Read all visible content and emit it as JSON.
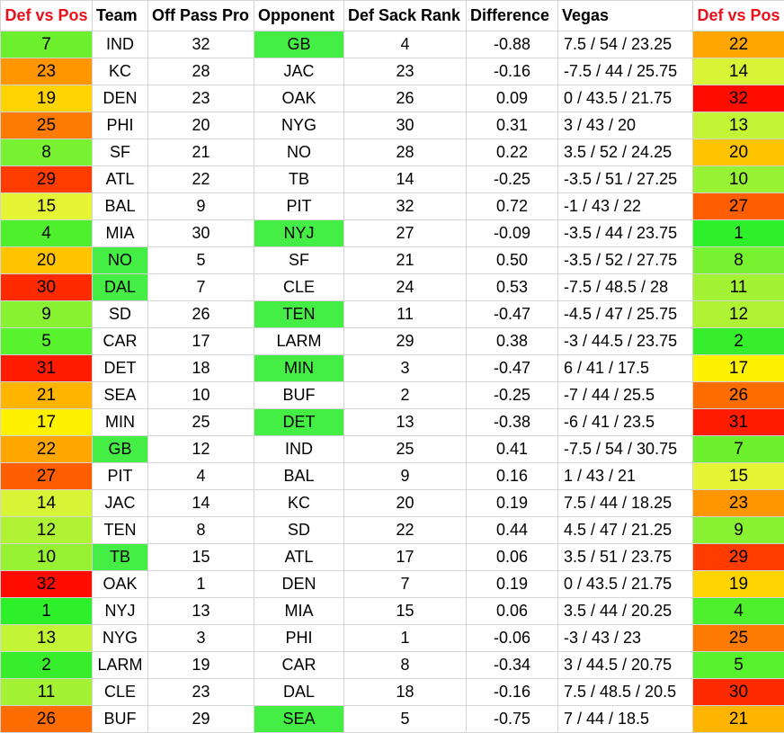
{
  "headers": [
    "Def vs Pos",
    "Team",
    "Off Pass Pro",
    "Opponent",
    "Def Sack Rank",
    "Difference",
    "Vegas",
    "Def vs Pos"
  ],
  "colors": {
    "header_red": "#e8121c",
    "highlight_green": "#44ee44",
    "scale": {
      "1": "#2ef02a",
      "2": "#36ee2c",
      "3": "#42f02c",
      "4": "#4ef02e",
      "5": "#58f22e",
      "6": "#64f230",
      "7": "#6cf02e",
      "8": "#78f230",
      "9": "#88f232",
      "10": "#98f234",
      "11": "#a4f234",
      "12": "#b0f234",
      "13": "#c4f436",
      "14": "#d8f436",
      "15": "#e6f436",
      "16": "#f0f434",
      "17": "#fff200",
      "18": "#ffe400",
      "19": "#ffd400",
      "20": "#ffc400",
      "21": "#ffb400",
      "22": "#ffa600",
      "23": "#ff9600",
      "24": "#ff8a00",
      "25": "#ff7a00",
      "26": "#ff6c00",
      "27": "#ff5e00",
      "28": "#ff5000",
      "29": "#ff3c00",
      "30": "#ff2a00",
      "31": "#ff1c00",
      "32": "#ff0c00"
    }
  },
  "rows": [
    {
      "def_vs_pos": "7",
      "team": "IND",
      "team_hl": false,
      "off_pass_pro": "32",
      "opponent": "GB",
      "opp_hl": true,
      "def_sack_rank": "4",
      "difference": "-0.88",
      "vegas": "7.5 / 54 / 23.25",
      "opp_def_vs_pos": "22"
    },
    {
      "def_vs_pos": "23",
      "team": "KC",
      "team_hl": false,
      "off_pass_pro": "28",
      "opponent": "JAC",
      "opp_hl": false,
      "def_sack_rank": "23",
      "difference": "-0.16",
      "vegas": "-7.5 / 44 / 25.75",
      "opp_def_vs_pos": "14"
    },
    {
      "def_vs_pos": "19",
      "team": "DEN",
      "team_hl": false,
      "off_pass_pro": "23",
      "opponent": "OAK",
      "opp_hl": false,
      "def_sack_rank": "26",
      "difference": "0.09",
      "vegas": "0 / 43.5 / 21.75",
      "opp_def_vs_pos": "32"
    },
    {
      "def_vs_pos": "25",
      "team": "PHI",
      "team_hl": false,
      "off_pass_pro": "20",
      "opponent": "NYG",
      "opp_hl": false,
      "def_sack_rank": "30",
      "difference": "0.31",
      "vegas": "3 / 43 / 20",
      "opp_def_vs_pos": "13"
    },
    {
      "def_vs_pos": "8",
      "team": "SF",
      "team_hl": false,
      "off_pass_pro": "21",
      "opponent": "NO",
      "opp_hl": false,
      "def_sack_rank": "28",
      "difference": "0.22",
      "vegas": "3.5 / 52 / 24.25",
      "opp_def_vs_pos": "20"
    },
    {
      "def_vs_pos": "29",
      "team": "ATL",
      "team_hl": false,
      "off_pass_pro": "22",
      "opponent": "TB",
      "opp_hl": false,
      "def_sack_rank": "14",
      "difference": "-0.25",
      "vegas": "-3.5 / 51 / 27.25",
      "opp_def_vs_pos": "10"
    },
    {
      "def_vs_pos": "15",
      "team": "BAL",
      "team_hl": false,
      "off_pass_pro": "9",
      "opponent": "PIT",
      "opp_hl": false,
      "def_sack_rank": "32",
      "difference": "0.72",
      "vegas": "-1 / 43 / 22",
      "opp_def_vs_pos": "27"
    },
    {
      "def_vs_pos": "4",
      "team": "MIA",
      "team_hl": false,
      "off_pass_pro": "30",
      "opponent": "NYJ",
      "opp_hl": true,
      "def_sack_rank": "27",
      "difference": "-0.09",
      "vegas": "-3.5 / 44 / 23.75",
      "opp_def_vs_pos": "1"
    },
    {
      "def_vs_pos": "20",
      "team": "NO",
      "team_hl": true,
      "off_pass_pro": "5",
      "opponent": "SF",
      "opp_hl": false,
      "def_sack_rank": "21",
      "difference": "0.50",
      "vegas": "-3.5 / 52 / 27.75",
      "opp_def_vs_pos": "8"
    },
    {
      "def_vs_pos": "30",
      "team": "DAL",
      "team_hl": true,
      "off_pass_pro": "7",
      "opponent": "CLE",
      "opp_hl": false,
      "def_sack_rank": "24",
      "difference": "0.53",
      "vegas": "-7.5 / 48.5 / 28",
      "opp_def_vs_pos": "11"
    },
    {
      "def_vs_pos": "9",
      "team": "SD",
      "team_hl": false,
      "off_pass_pro": "26",
      "opponent": "TEN",
      "opp_hl": true,
      "def_sack_rank": "11",
      "difference": "-0.47",
      "vegas": "-4.5 / 47 / 25.75",
      "opp_def_vs_pos": "12"
    },
    {
      "def_vs_pos": "5",
      "team": "CAR",
      "team_hl": false,
      "off_pass_pro": "17",
      "opponent": "LARM",
      "opp_hl": false,
      "def_sack_rank": "29",
      "difference": "0.38",
      "vegas": "-3 / 44.5 / 23.75",
      "opp_def_vs_pos": "2"
    },
    {
      "def_vs_pos": "31",
      "team": "DET",
      "team_hl": false,
      "off_pass_pro": "18",
      "opponent": "MIN",
      "opp_hl": true,
      "def_sack_rank": "3",
      "difference": "-0.47",
      "vegas": "6 / 41 / 17.5",
      "opp_def_vs_pos": "17"
    },
    {
      "def_vs_pos": "21",
      "team": "SEA",
      "team_hl": false,
      "off_pass_pro": "10",
      "opponent": "BUF",
      "opp_hl": false,
      "def_sack_rank": "2",
      "difference": "-0.25",
      "vegas": "-7 / 44 / 25.5",
      "opp_def_vs_pos": "26"
    },
    {
      "def_vs_pos": "17",
      "team": "MIN",
      "team_hl": false,
      "off_pass_pro": "25",
      "opponent": "DET",
      "opp_hl": true,
      "def_sack_rank": "13",
      "difference": "-0.38",
      "vegas": "-6 / 41 / 23.5",
      "opp_def_vs_pos": "31"
    },
    {
      "def_vs_pos": "22",
      "team": "GB",
      "team_hl": true,
      "off_pass_pro": "12",
      "opponent": "IND",
      "opp_hl": false,
      "def_sack_rank": "25",
      "difference": "0.41",
      "vegas": "-7.5 / 54 / 30.75",
      "opp_def_vs_pos": "7"
    },
    {
      "def_vs_pos": "27",
      "team": "PIT",
      "team_hl": false,
      "off_pass_pro": "4",
      "opponent": "BAL",
      "opp_hl": false,
      "def_sack_rank": "9",
      "difference": "0.16",
      "vegas": "1 / 43 / 21",
      "opp_def_vs_pos": "15"
    },
    {
      "def_vs_pos": "14",
      "team": "JAC",
      "team_hl": false,
      "off_pass_pro": "14",
      "opponent": "KC",
      "opp_hl": false,
      "def_sack_rank": "20",
      "difference": "0.19",
      "vegas": "7.5 / 44 / 18.25",
      "opp_def_vs_pos": "23"
    },
    {
      "def_vs_pos": "12",
      "team": "TEN",
      "team_hl": false,
      "off_pass_pro": "8",
      "opponent": "SD",
      "opp_hl": false,
      "def_sack_rank": "22",
      "difference": "0.44",
      "vegas": "4.5 / 47 / 21.25",
      "opp_def_vs_pos": "9"
    },
    {
      "def_vs_pos": "10",
      "team": "TB",
      "team_hl": true,
      "off_pass_pro": "15",
      "opponent": "ATL",
      "opp_hl": false,
      "def_sack_rank": "17",
      "difference": "0.06",
      "vegas": "3.5 / 51 / 23.75",
      "opp_def_vs_pos": "29"
    },
    {
      "def_vs_pos": "32",
      "team": "OAK",
      "team_hl": false,
      "off_pass_pro": "1",
      "opponent": "DEN",
      "opp_hl": false,
      "def_sack_rank": "7",
      "difference": "0.19",
      "vegas": "0 / 43.5 / 21.75",
      "opp_def_vs_pos": "19"
    },
    {
      "def_vs_pos": "1",
      "team": "NYJ",
      "team_hl": false,
      "off_pass_pro": "13",
      "opponent": "MIA",
      "opp_hl": false,
      "def_sack_rank": "15",
      "difference": "0.06",
      "vegas": "3.5 / 44 / 20.25",
      "opp_def_vs_pos": "4"
    },
    {
      "def_vs_pos": "13",
      "team": "NYG",
      "team_hl": false,
      "off_pass_pro": "3",
      "opponent": "PHI",
      "opp_hl": false,
      "def_sack_rank": "1",
      "difference": "-0.06",
      "vegas": "-3 / 43 / 23",
      "opp_def_vs_pos": "25"
    },
    {
      "def_vs_pos": "2",
      "team": "LARM",
      "team_hl": false,
      "off_pass_pro": "19",
      "opponent": "CAR",
      "opp_hl": false,
      "def_sack_rank": "8",
      "difference": "-0.34",
      "vegas": "3 / 44.5 / 20.75",
      "opp_def_vs_pos": "5"
    },
    {
      "def_vs_pos": "11",
      "team": "CLE",
      "team_hl": false,
      "off_pass_pro": "23",
      "opponent": "DAL",
      "opp_hl": false,
      "def_sack_rank": "18",
      "difference": "-0.16",
      "vegas": "7.5 / 48.5 / 20.5",
      "opp_def_vs_pos": "30"
    },
    {
      "def_vs_pos": "26",
      "team": "BUF",
      "team_hl": false,
      "off_pass_pro": "29",
      "opponent": "SEA",
      "opp_hl": true,
      "def_sack_rank": "5",
      "difference": "-0.75",
      "vegas": "7 / 44 / 18.5",
      "opp_def_vs_pos": "21"
    }
  ]
}
